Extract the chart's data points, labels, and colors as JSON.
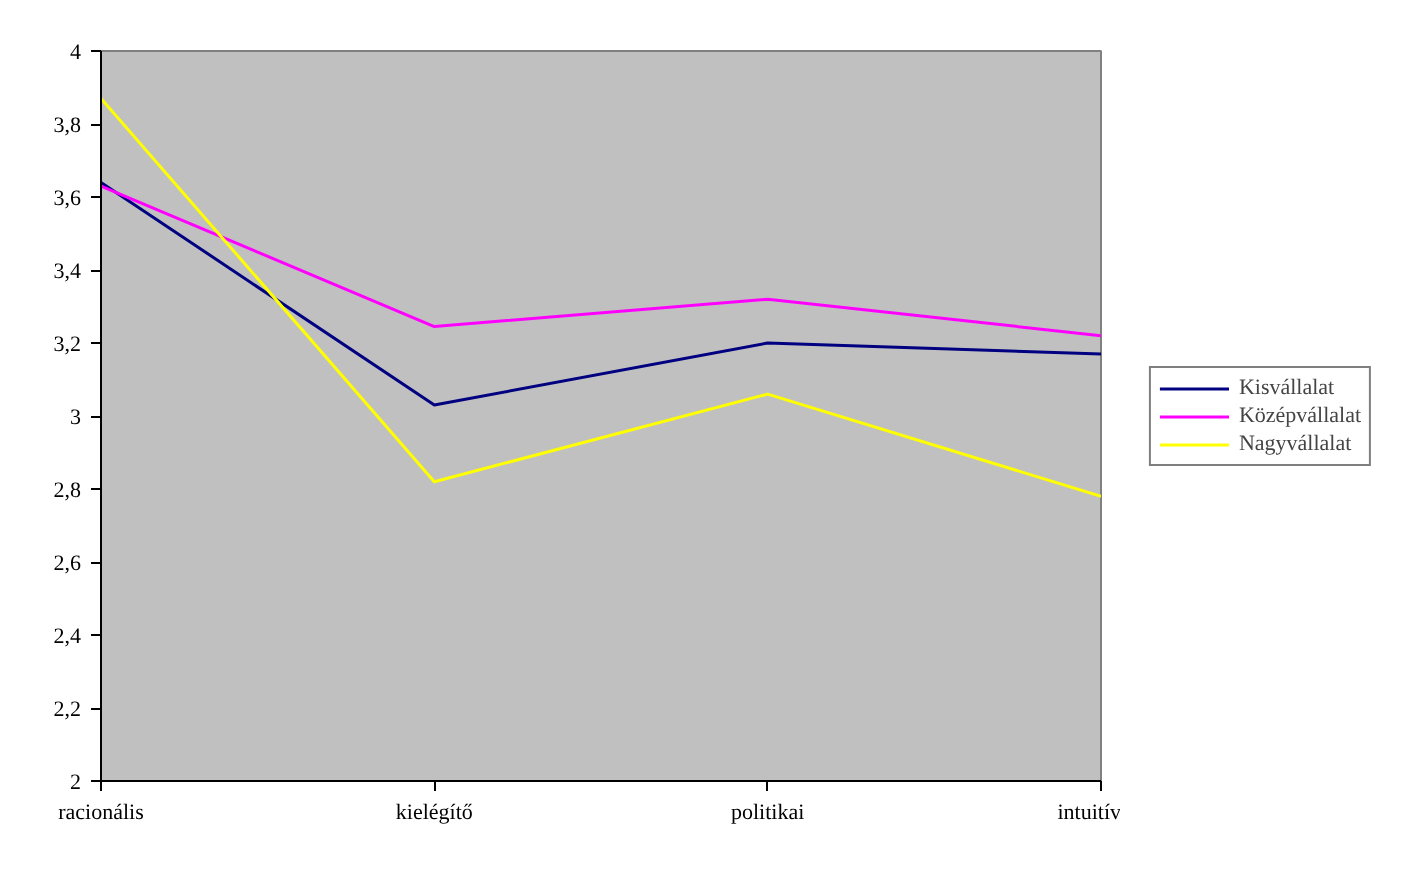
{
  "chart_data": {
    "type": "line",
    "categories": [
      "racionális",
      "kielégítő",
      "politikai",
      "intuitív"
    ],
    "series": [
      {
        "name": "Kisvállalat",
        "color": "#000080",
        "values": [
          3.64,
          3.03,
          3.2,
          3.17
        ]
      },
      {
        "name": "Középvállalat",
        "color": "#ff00ff",
        "values": [
          3.63,
          3.245,
          3.32,
          3.22
        ]
      },
      {
        "name": "Nagyvállalat",
        "color": "#ffff00",
        "values": [
          3.87,
          2.82,
          3.06,
          2.78
        ]
      }
    ],
    "ylim": [
      2,
      4
    ],
    "yticks": [
      2,
      {
        "value": 2.2,
        "label": "2,2"
      },
      {
        "value": 2.4,
        "label": "2,4"
      },
      {
        "value": 2.6,
        "label": "2,6"
      },
      {
        "value": 2.8,
        "label": "2,8"
      },
      3,
      {
        "value": 3.2,
        "label": "3,2"
      },
      {
        "value": 3.4,
        "label": "3,4"
      },
      {
        "value": 3.6,
        "label": "3,6"
      },
      {
        "value": 3.8,
        "label": "3,8"
      },
      4
    ],
    "grid": false,
    "legend": "right",
    "marker": "none",
    "line_style": "solid"
  }
}
